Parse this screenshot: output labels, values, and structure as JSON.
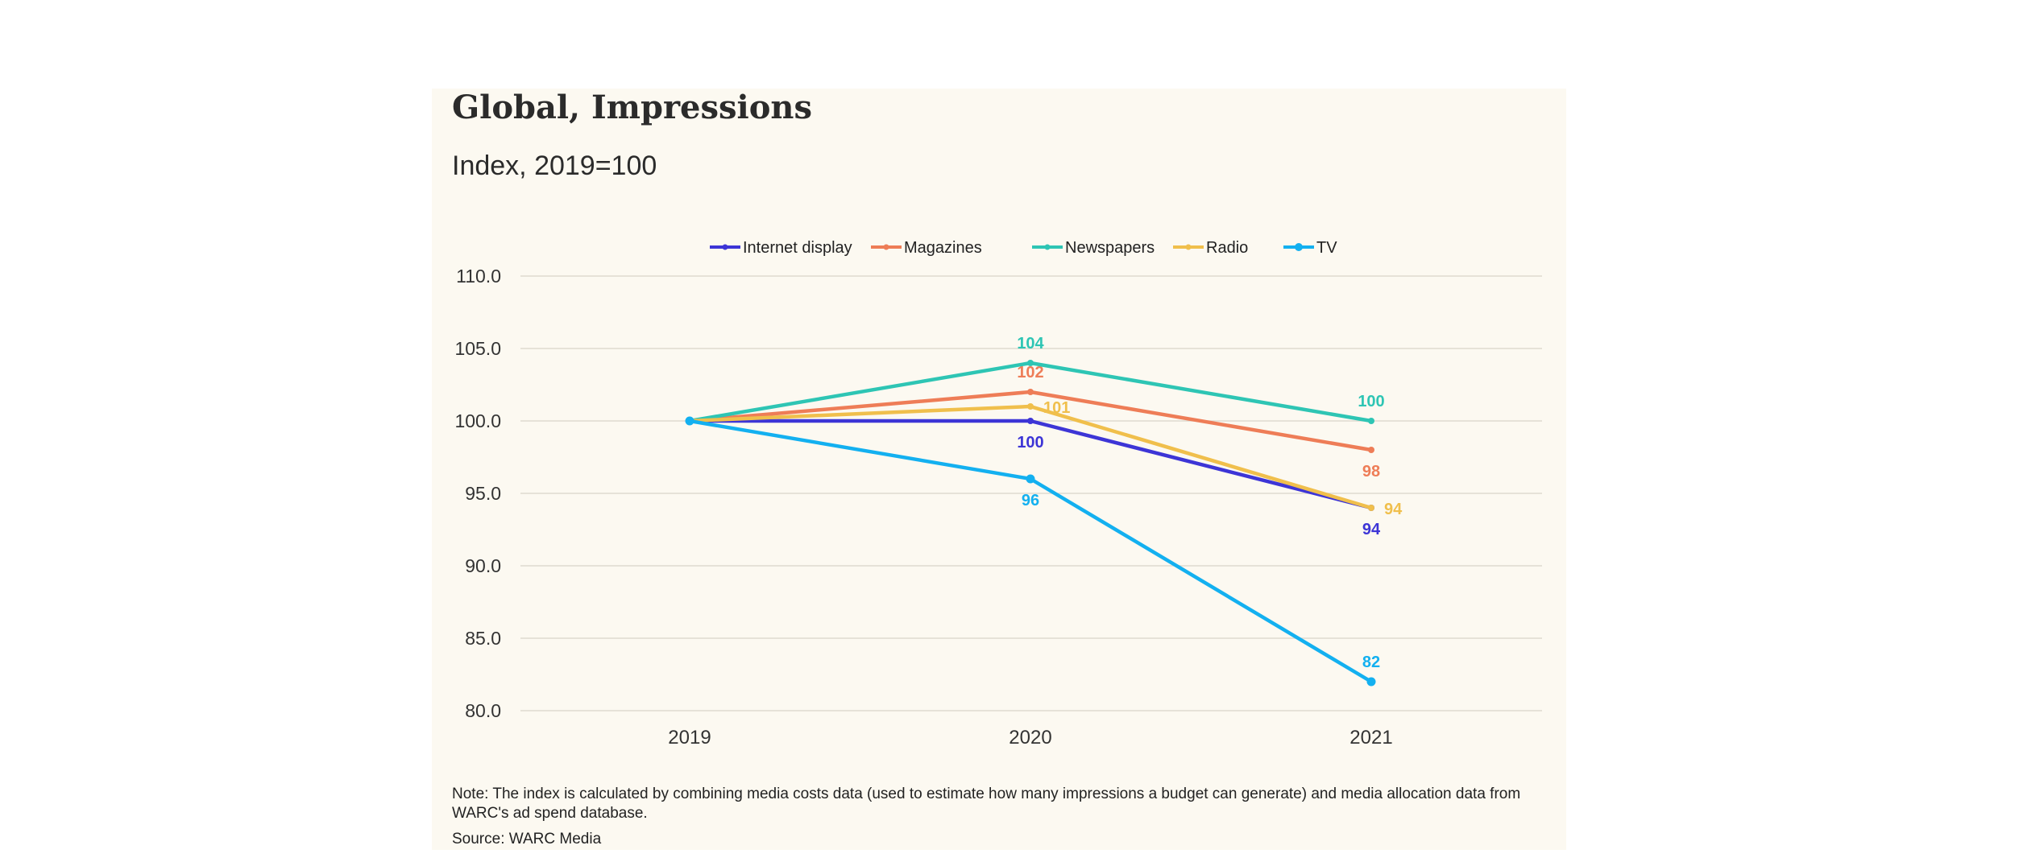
{
  "chart_data": {
    "type": "line",
    "title": "Global, Impressions",
    "subtitle": "Index, 2019=100",
    "categories": [
      "2019",
      "2020",
      "2021"
    ],
    "ylim": [
      80,
      110
    ],
    "yticks": [
      "110.0",
      "105.0",
      "100.0",
      "95.0",
      "90.0",
      "85.0",
      "80.0"
    ],
    "ytick_values": [
      110,
      105,
      100,
      95,
      90,
      85,
      80
    ],
    "grid": true,
    "legend_position": "top-center",
    "series": [
      {
        "name": "Internet display",
        "color": "#3d35d6",
        "values": [
          100,
          100,
          94
        ],
        "labels": [
          "",
          "100",
          "94"
        ],
        "label_pos": [
          "",
          "below",
          "below"
        ]
      },
      {
        "name": "Magazines",
        "color": "#ee7d57",
        "values": [
          100,
          102,
          98
        ],
        "labels": [
          "",
          "102",
          "98"
        ],
        "label_pos": [
          "",
          "above",
          "below"
        ]
      },
      {
        "name": "Newspapers",
        "color": "#2ec5b4",
        "values": [
          100,
          104,
          100
        ],
        "labels": [
          "",
          "104",
          "100"
        ],
        "label_pos": [
          "",
          "above",
          "above"
        ]
      },
      {
        "name": "Radio",
        "color": "#f0bf4c",
        "values": [
          100,
          101,
          94
        ],
        "labels": [
          "",
          "101",
          "94"
        ],
        "label_pos": [
          "",
          "right",
          "right"
        ]
      },
      {
        "name": "TV",
        "color": "#13b0f0",
        "values": [
          100,
          96,
          82
        ],
        "labels": [
          "",
          "96",
          "82"
        ],
        "label_pos": [
          "",
          "below",
          "above"
        ]
      }
    ]
  },
  "note": "Note: The index is calculated by combining media costs data (used to estimate how many impressions a budget can generate) and media allocation data from WARC's ad spend database.",
  "source": "Source: WARC Media"
}
